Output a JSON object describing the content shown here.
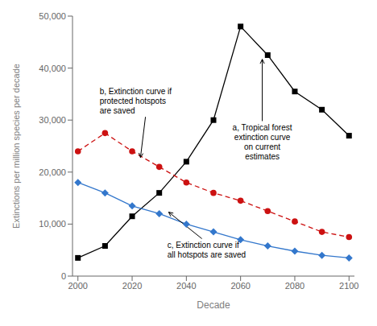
{
  "chart_data": {
    "type": "line",
    "xlabel": "Decade",
    "ylabel": "Extinctions per million species per decade",
    "x": [
      2000,
      2010,
      2020,
      2030,
      2040,
      2050,
      2060,
      2070,
      2080,
      2090,
      2100
    ],
    "series": [
      {
        "color": "#000000",
        "marker": "square",
        "line_style": "solid",
        "values": [
          3500,
          5800,
          11500,
          16000,
          22000,
          30000,
          48000,
          42500,
          35500,
          32000,
          27000
        ]
      },
      {
        "color": "#cc1111",
        "marker": "circle",
        "line_style": "dashed",
        "values": [
          24000,
          27500,
          24000,
          21000,
          18000,
          16000,
          14500,
          12500,
          10500,
          8500,
          7500
        ]
      },
      {
        "color": "#3377cc",
        "marker": "diamond",
        "line_style": "solid",
        "values": [
          18000,
          16000,
          13500,
          12000,
          10000,
          8500,
          7000,
          5800,
          4800,
          4000,
          3500
        ]
      }
    ],
    "xlim": [
      1998,
      2102
    ],
    "ylim": [
      0,
      50000
    ],
    "xticks": [
      2000,
      2020,
      2040,
      2060,
      2080,
      2100
    ],
    "yticks": [
      0,
      {
        "value": 10000,
        "label": "10,000"
      },
      {
        "value": 20000,
        "label": "20,000"
      },
      {
        "value": 30000,
        "label": "30,000"
      },
      {
        "value": 40000,
        "label": "40,000"
      },
      {
        "value": 50000,
        "label": "50,000"
      }
    ],
    "grid": false,
    "annotations": [
      {
        "text": "a, Tropical forest\nextinction curve\non current\nestimates",
        "xy": [
          2068,
          42000
        ],
        "xytext": [
          2068,
          29500
        ]
      },
      {
        "text": "b, Extinction curve if\nprotected hotspots\nare saved",
        "xy": [
          2023,
          22500
        ],
        "xytext": [
          2008,
          36500
        ]
      },
      {
        "text": "c, Extinction curve if\nall hotspots are saved",
        "xy": [
          2033,
          12500
        ],
        "xytext": [
          2033,
          7000
        ]
      }
    ]
  }
}
